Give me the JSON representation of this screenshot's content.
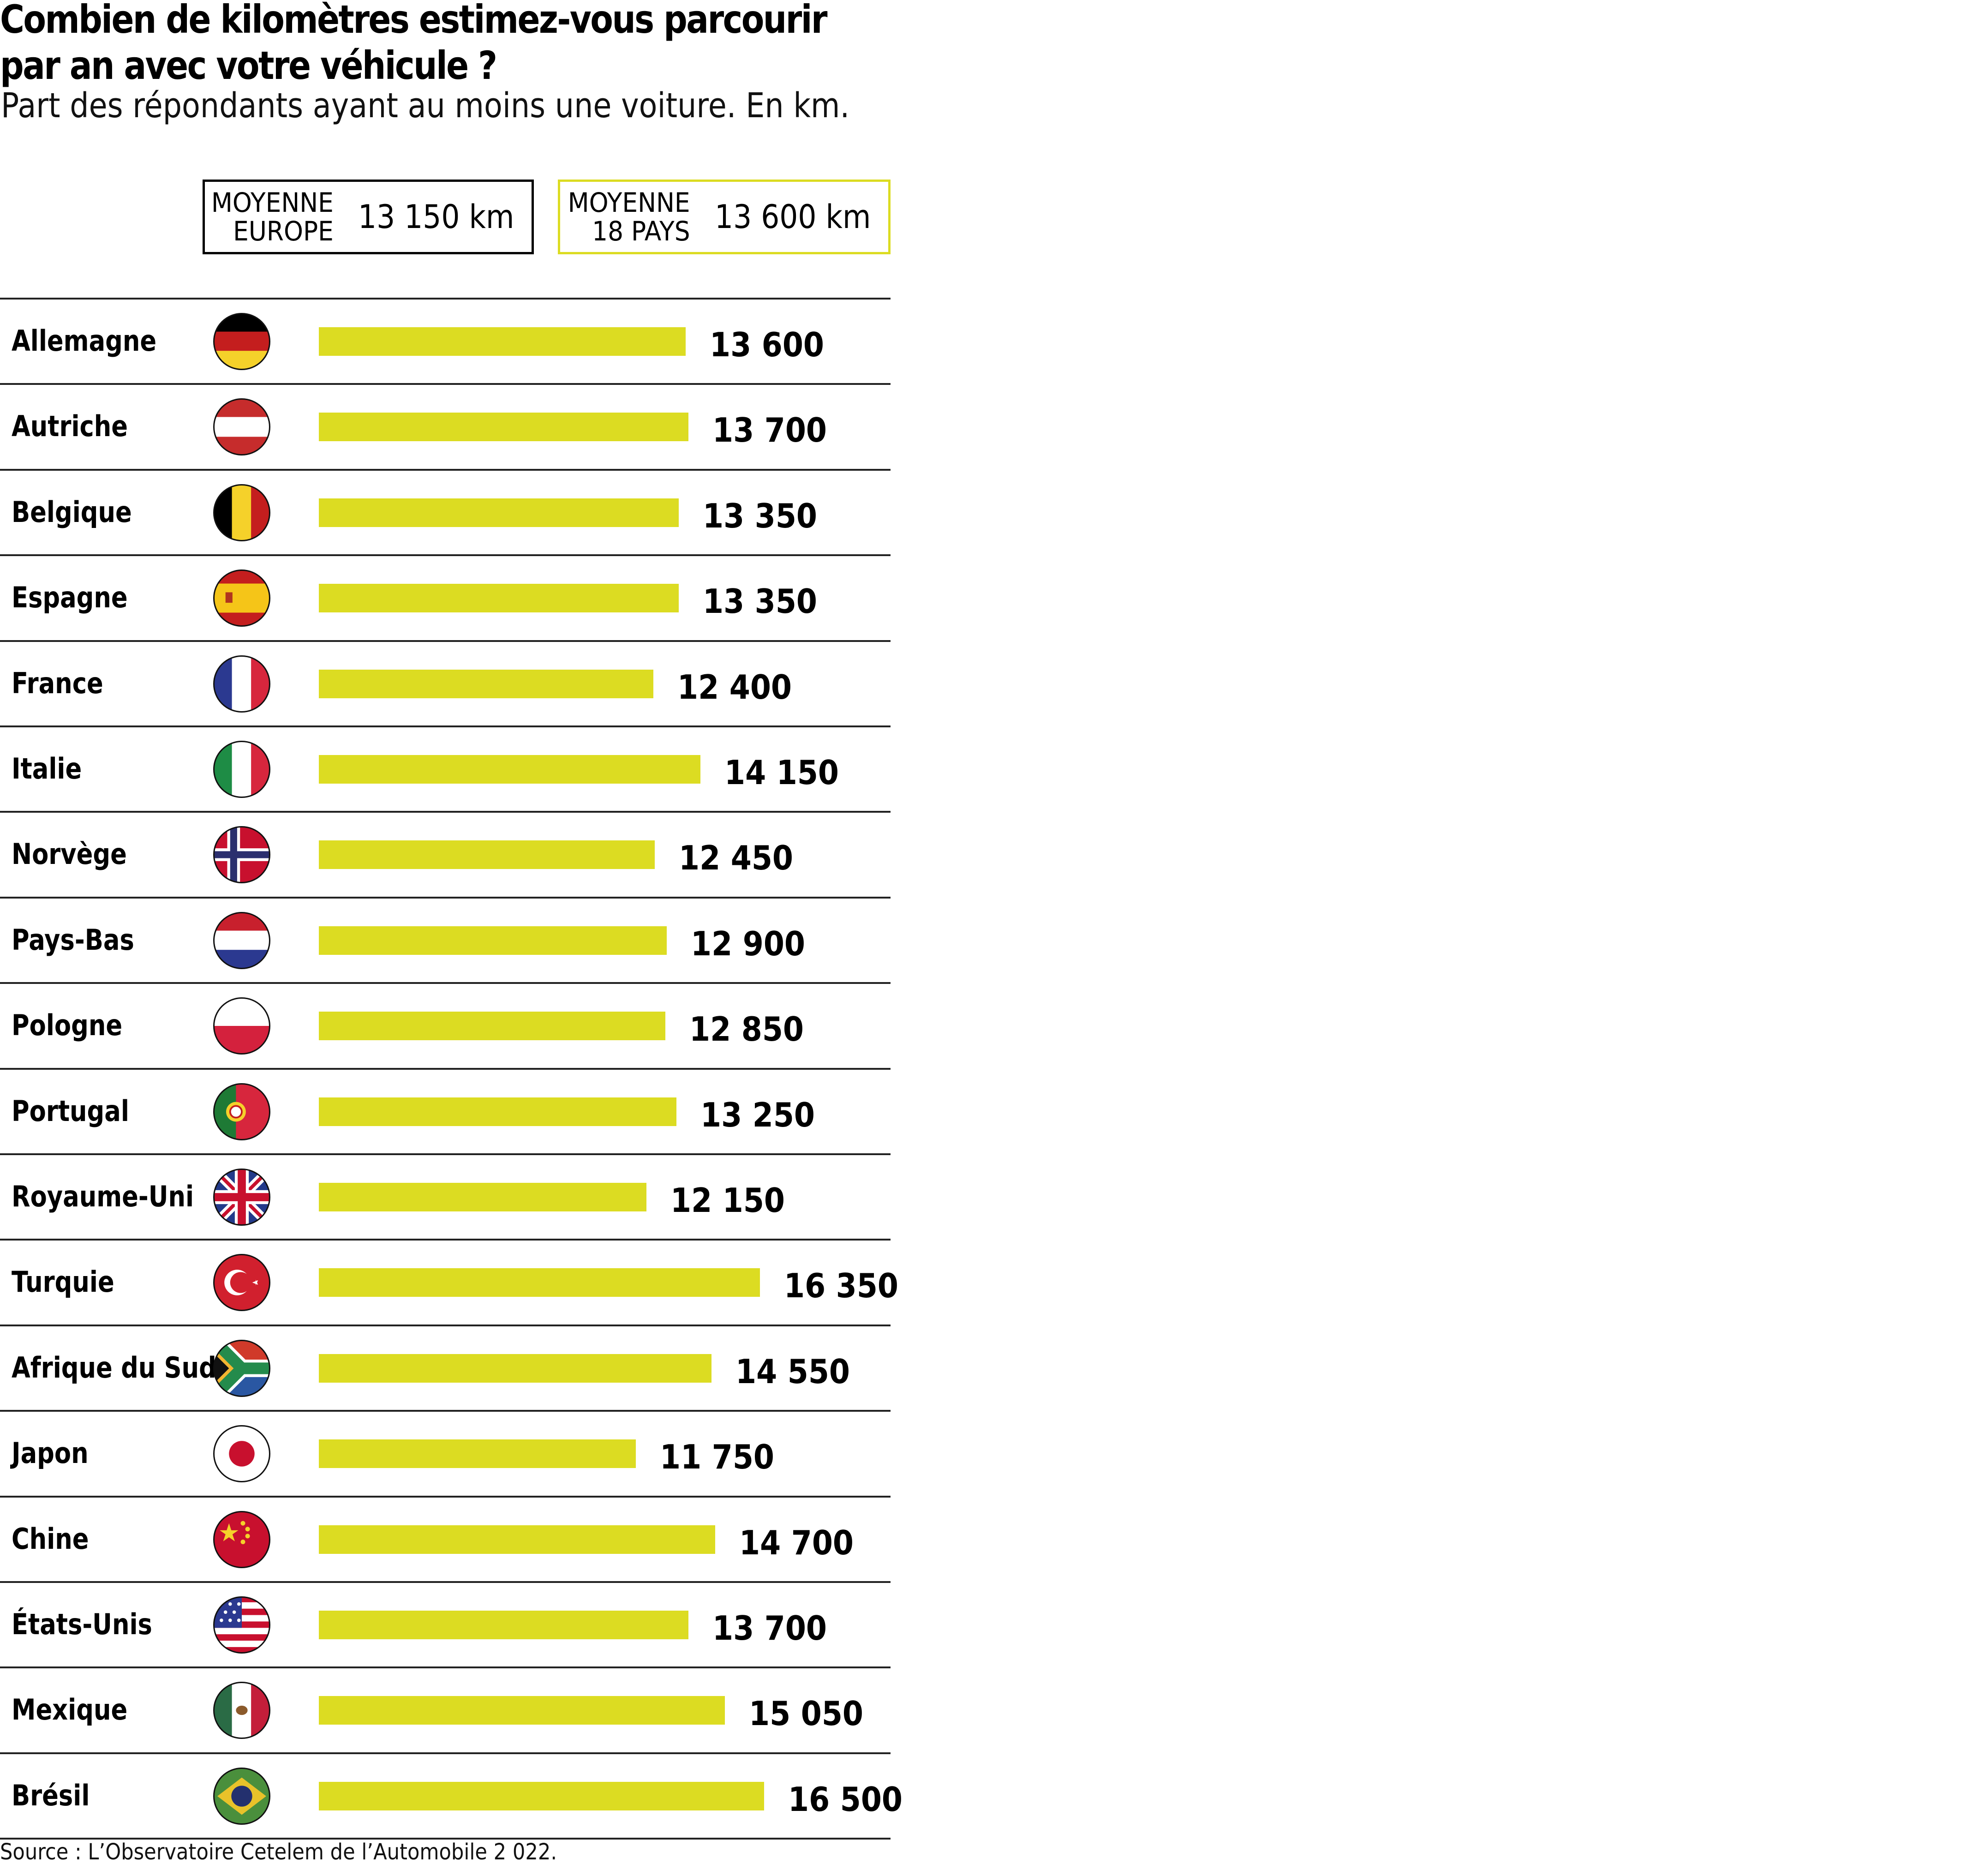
{
  "header": {
    "title_line1": "Combien de kilomètres estimez-vous parcourir",
    "title_line2": "par an avec votre véhicule ?",
    "subtitle": "Part des répondants ayant au moins une voiture. En km."
  },
  "averages": [
    {
      "label_line1": "MOYENNE",
      "label_line2": "EUROPE",
      "value": "13 150 km",
      "border_color": "#000000"
    },
    {
      "label_line1": "MOYENNE",
      "label_line2": "18 PAYS",
      "value": "13 600 km",
      "border_color": "#dcdc22"
    }
  ],
  "colors": {
    "bar": "#dcdc22",
    "separator": "#222222"
  },
  "chart_data": {
    "type": "bar",
    "orientation": "horizontal",
    "title": "Combien de kilomètres estimez-vous parcourir par an avec votre véhicule ?",
    "subtitle": "Part des répondants ayant au moins une voiture. En km.",
    "unit": "km",
    "categories": [
      "Allemagne",
      "Autriche",
      "Belgique",
      "Espagne",
      "France",
      "Italie",
      "Norvège",
      "Pays-Bas",
      "Pologne",
      "Portugal",
      "Royaume-Uni",
      "Turquie",
      "Afrique du Sud",
      "Japon",
      "Chine",
      "États-Unis",
      "Mexique",
      "Brésil"
    ],
    "values": [
      13600,
      13700,
      13350,
      13350,
      12400,
      14150,
      12450,
      12900,
      12850,
      13250,
      12150,
      16350,
      14550,
      11750,
      14700,
      13700,
      15050,
      16500
    ],
    "value_labels": [
      "13 600",
      "13 700",
      "13 350",
      "13 350",
      "12 400",
      "14 150",
      "12 450",
      "12 900",
      "12 850",
      "13 250",
      "12 150",
      "16 350",
      "14 550",
      "11 750",
      "14 700",
      "13 700",
      "15 050",
      "16 500"
    ],
    "flags": [
      "germany-flag-icon",
      "austria-flag-icon",
      "belgium-flag-icon",
      "spain-flag-icon",
      "france-flag-icon",
      "italy-flag-icon",
      "norway-flag-icon",
      "netherlands-flag-icon",
      "poland-flag-icon",
      "portugal-flag-icon",
      "uk-flag-icon",
      "turkey-flag-icon",
      "south-africa-flag-icon",
      "japan-flag-icon",
      "china-flag-icon",
      "usa-flag-icon",
      "mexico-flag-icon",
      "brazil-flag-icon"
    ],
    "xlim": [
      0,
      16500
    ],
    "grid": false,
    "legend": "none"
  },
  "footer": {
    "source": "Source : L’Observatoire Cetelem de l’Automobile 2 022."
  }
}
